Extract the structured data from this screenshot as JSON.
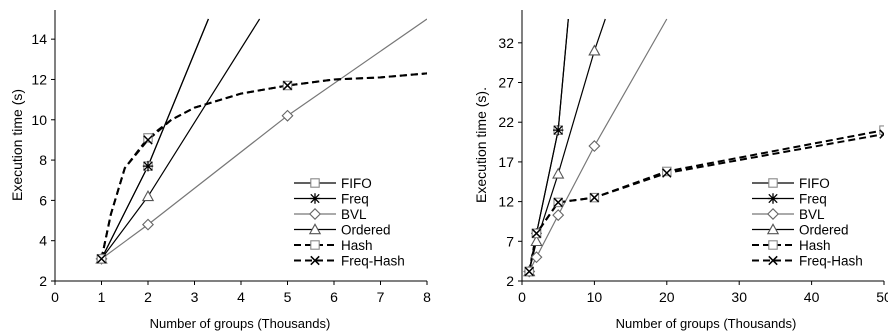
{
  "chart_data": [
    {
      "type": "line",
      "title": "",
      "xlabel": "Number of groups (Thousands)",
      "ylabel": "Execution time (s)",
      "xlim": [
        0,
        8
      ],
      "ylim": [
        2,
        15
      ],
      "xticks": [
        0,
        1,
        2,
        3,
        4,
        5,
        6,
        7,
        8
      ],
      "yticks": [
        2,
        4,
        6,
        8,
        10,
        12,
        14
      ],
      "grid": false,
      "legend_position": "bottom-right",
      "series": [
        {
          "name": "FIFO",
          "style": "solid",
          "marker": "square",
          "color": "#000000",
          "x": [
            1,
            2,
            3.3
          ],
          "y": [
            3.1,
            7.7,
            15.0
          ],
          "marker_x": [
            1,
            2
          ],
          "marker_y": [
            3.1,
            7.7
          ]
        },
        {
          "name": "Freq",
          "style": "solid",
          "marker": "asterisk",
          "color": "#000000",
          "x": [
            1,
            2,
            3.3
          ],
          "y": [
            3.1,
            7.7,
            15.0
          ],
          "marker_x": [
            1,
            2
          ],
          "marker_y": [
            3.1,
            7.7
          ]
        },
        {
          "name": "BVL",
          "style": "solid",
          "marker": "diamond",
          "color": "#777777",
          "x": [
            1,
            2,
            5,
            8
          ],
          "y": [
            3.1,
            4.8,
            10.2,
            15.0
          ],
          "marker_x": [
            1,
            2,
            5
          ],
          "marker_y": [
            3.1,
            4.8,
            10.2
          ]
        },
        {
          "name": "Ordered",
          "style": "solid",
          "marker": "triangle",
          "color": "#000000",
          "x": [
            1,
            2,
            4.4
          ],
          "y": [
            3.1,
            6.2,
            15.0
          ],
          "marker_x": [
            1,
            2
          ],
          "marker_y": [
            3.1,
            6.2
          ]
        },
        {
          "name": "Hash",
          "style": "dashed",
          "marker": "square",
          "color": "#000000",
          "x": [
            1,
            1.2,
            1.5,
            2,
            2.5,
            3,
            4,
            5,
            6,
            7,
            8
          ],
          "y": [
            3.1,
            5.3,
            7.6,
            9.1,
            10.0,
            10.6,
            11.3,
            11.7,
            12.0,
            12.1,
            12.3
          ],
          "marker_x": [
            1,
            2,
            5
          ],
          "marker_y": [
            3.1,
            9.1,
            11.7
          ]
        },
        {
          "name": "Freq-Hash",
          "style": "dashed",
          "marker": "x",
          "color": "#000000",
          "x": [
            1,
            1.2,
            1.5,
            2,
            2.5,
            3,
            4,
            5,
            6,
            7,
            8
          ],
          "y": [
            3.1,
            5.3,
            7.6,
            9.0,
            10.0,
            10.6,
            11.3,
            11.7,
            12.0,
            12.1,
            12.3
          ],
          "marker_x": [
            1,
            2,
            5
          ],
          "marker_y": [
            3.1,
            9.0,
            11.7
          ]
        }
      ]
    },
    {
      "type": "line",
      "title": "",
      "xlabel": "Number of groups (Thousands)",
      "ylabel": "Execution time (s).",
      "xlim": [
        0,
        50
      ],
      "ylim": [
        2,
        35
      ],
      "xticks": [
        0,
        10,
        20,
        30,
        40,
        50
      ],
      "yticks": [
        2,
        7,
        12,
        17,
        22,
        27,
        32
      ],
      "grid": false,
      "legend_position": "bottom-right",
      "series": [
        {
          "name": "FIFO",
          "style": "solid",
          "marker": "square",
          "color": "#000000",
          "x": [
            1,
            2,
            5,
            6.4
          ],
          "y": [
            3.2,
            8.0,
            21.0,
            35.0
          ],
          "marker_x": [
            1,
            2,
            5
          ],
          "marker_y": [
            3.2,
            8.0,
            21.0
          ]
        },
        {
          "name": "Freq",
          "style": "solid",
          "marker": "asterisk",
          "color": "#000000",
          "x": [
            1,
            2,
            5,
            6.4
          ],
          "y": [
            3.2,
            8.0,
            21.0,
            35.0
          ],
          "marker_x": [
            1,
            2,
            5
          ],
          "marker_y": [
            3.2,
            8.0,
            21.0
          ]
        },
        {
          "name": "BVL",
          "style": "solid",
          "marker": "diamond",
          "color": "#777777",
          "x": [
            1,
            2,
            5,
            10,
            20
          ],
          "y": [
            3.2,
            5.0,
            10.3,
            19.0,
            35.0
          ],
          "marker_x": [
            1,
            2,
            5,
            10
          ],
          "marker_y": [
            3.2,
            5.0,
            10.3,
            19.0
          ]
        },
        {
          "name": "Ordered",
          "style": "solid",
          "marker": "triangle",
          "color": "#000000",
          "x": [
            1,
            2,
            5,
            10,
            11.5
          ],
          "y": [
            3.2,
            7.0,
            15.5,
            31.0,
            35.0
          ],
          "marker_x": [
            1,
            2,
            5,
            10
          ],
          "marker_y": [
            3.2,
            7.0,
            15.5,
            31.0
          ]
        },
        {
          "name": "Hash",
          "style": "dashed",
          "marker": "square",
          "color": "#000000",
          "x": [
            1,
            2,
            5,
            10,
            20,
            50
          ],
          "y": [
            3.2,
            8.0,
            11.9,
            12.5,
            15.8,
            21.0
          ],
          "marker_x": [
            1,
            2,
            5,
            10,
            20,
            50
          ],
          "marker_y": [
            3.2,
            8.0,
            11.9,
            12.5,
            15.8,
            21.0
          ]
        },
        {
          "name": "Freq-Hash",
          "style": "dashed",
          "marker": "x",
          "color": "#000000",
          "x": [
            1,
            2,
            5,
            10,
            20,
            50
          ],
          "y": [
            3.2,
            8.0,
            11.9,
            12.5,
            15.6,
            20.5
          ],
          "marker_x": [
            1,
            2,
            5,
            10,
            20,
            50
          ],
          "marker_y": [
            3.2,
            8.0,
            11.9,
            12.5,
            15.6,
            20.5
          ]
        }
      ]
    }
  ]
}
